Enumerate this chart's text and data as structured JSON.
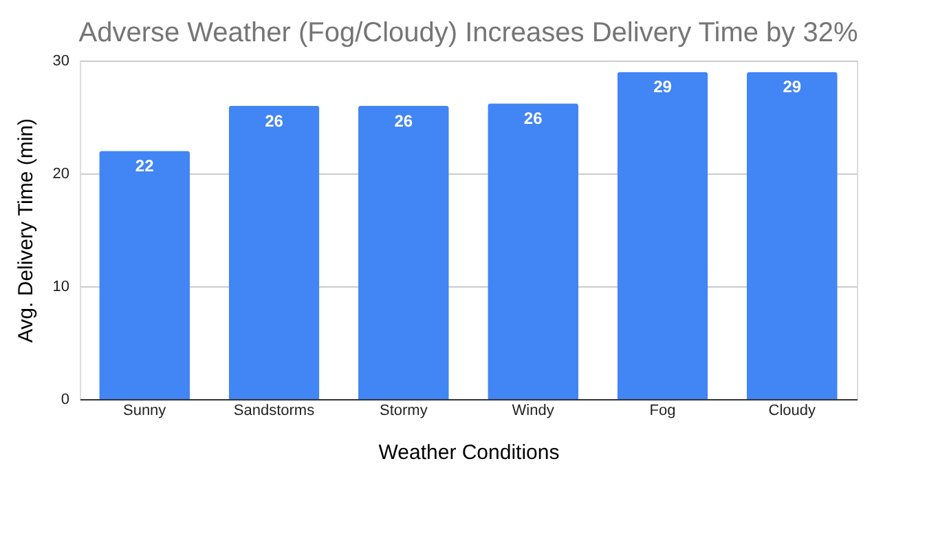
{
  "chart_data": {
    "type": "bar",
    "title": "Adverse Weather (Fog/Cloudy) Increases Delivery Time by 32%",
    "xlabel": "Weather Conditions",
    "ylabel": "Avg. Delivery Time (min)",
    "categories": [
      "Sunny",
      "Sandstorms",
      "Stormy",
      "Windy",
      "Fog",
      "Cloudy"
    ],
    "values": [
      22,
      26,
      26,
      26.2,
      29,
      29
    ],
    "value_labels": [
      "22",
      "26",
      "26",
      "26",
      "29",
      "29"
    ],
    "color": "#4285f4",
    "ylim": [
      0,
      30
    ],
    "yticks": [
      0,
      10,
      20,
      30
    ],
    "grid": "y"
  }
}
